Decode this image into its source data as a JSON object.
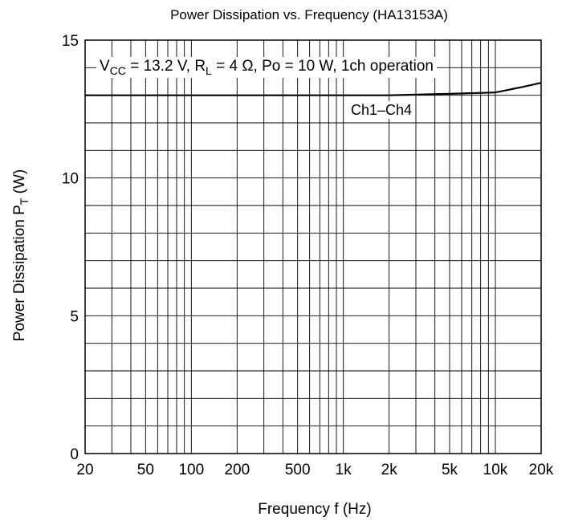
{
  "chart_data": {
    "type": "line",
    "title": "Power Dissipation vs. Frequency (HA13153A)",
    "xlabel": "Frequency  f  (Hz)",
    "ylabel_main": "Power Dissipation  P",
    "ylabel_sub": "T",
    "ylabel_unit": "  (W)",
    "x_scale": "log",
    "xlim": [
      20,
      20000
    ],
    "ylim": [
      0,
      15
    ],
    "x_ticks": [
      20,
      50,
      100,
      200,
      500,
      1000,
      2000,
      5000,
      10000,
      20000
    ],
    "x_tick_labels": [
      "20",
      "50",
      "100",
      "200",
      "500",
      "1k",
      "2k",
      "5k",
      "10k",
      "20k"
    ],
    "y_ticks": [
      0,
      5,
      10,
      15
    ],
    "y_tick_labels": [
      "0",
      "5",
      "10",
      "15"
    ],
    "grid": true,
    "conditions": {
      "v": "V",
      "v_sub": "CC",
      "v_rest": " = 13.2 V, R",
      "r_sub": "L",
      "r_rest": " = 4 Ω, Po = 10 W, 1ch operation"
    },
    "series": [
      {
        "name": "Ch1–Ch4",
        "x": [
          20,
          50,
          100,
          200,
          500,
          1000,
          2000,
          5000,
          10000,
          15000,
          20000
        ],
        "y": [
          13.0,
          13.0,
          13.0,
          13.0,
          13.0,
          13.0,
          13.0,
          13.05,
          13.1,
          13.3,
          13.45
        ]
      }
    ]
  }
}
